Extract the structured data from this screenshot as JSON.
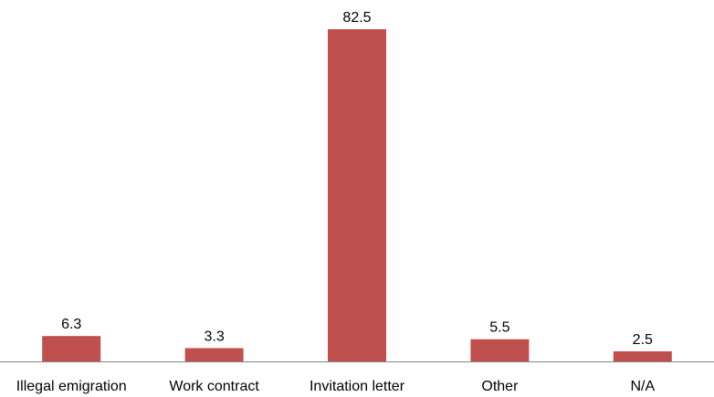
{
  "chart_data": {
    "type": "bar",
    "categories": [
      "Illegal emigration",
      "Work contract",
      "Invitation letter",
      "Other",
      "N/A"
    ],
    "series": [
      {
        "values": [
          6.3,
          3.3,
          82.5,
          5.5,
          2.5
        ],
        "data_labels": [
          "6.3",
          "3.3",
          "82.5",
          "5.5",
          "2.5"
        ]
      }
    ],
    "ylim": [
      0,
      82.5
    ],
    "grid": false,
    "legend": "none",
    "title": "",
    "xlabel": "",
    "ylabel": "",
    "colors": {
      "bar": "#c0504d",
      "axis": "#868686",
      "text": "#000000"
    }
  }
}
